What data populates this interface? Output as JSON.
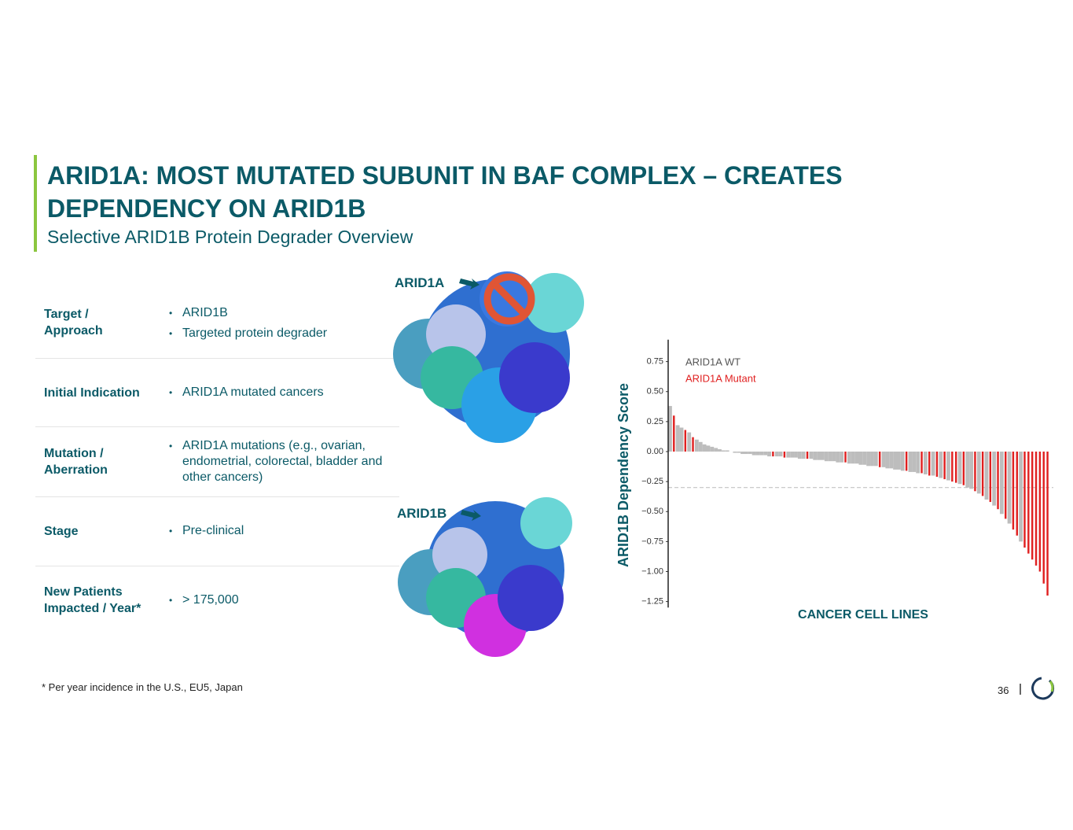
{
  "header": {
    "title": "ARID1A: MOST MUTATED SUBUNIT IN BAF COMPLEX – CREATES DEPENDENCY ON ARID1B",
    "subtitle": "Selective ARID1B Protein Degrader Overview"
  },
  "table": {
    "rows": [
      {
        "label": [
          "Target /",
          "Approach"
        ],
        "items": [
          "ARID1B",
          "Targeted protein degrader"
        ]
      },
      {
        "label": [
          "Initial Indication"
        ],
        "items": [
          "ARID1A mutated cancers"
        ]
      },
      {
        "label": [
          "Mutation /",
          "Aberration"
        ],
        "items": [
          "ARID1A mutations (e.g., ovarian, endometrial, colorectal, bladder and other cancers)"
        ]
      },
      {
        "label": [
          "Stage"
        ],
        "items": [
          "Pre-clinical"
        ]
      },
      {
        "label": [
          "New Patients",
          "Impacted / Year*"
        ],
        "items": [
          "> 175,000"
        ]
      }
    ]
  },
  "figure": {
    "labels": [
      "ARID1A",
      "ARID1B"
    ]
  },
  "chart_data": {
    "type": "bar",
    "y_label": "ARID1B Dependency Score",
    "x_label": "CANCER CELL LINES",
    "ylim": [
      -1.3,
      0.9
    ],
    "yticks": [
      {
        "value": 0.75,
        "label": "0.75"
      },
      {
        "value": 0.5,
        "label": "0.50"
      },
      {
        "value": 0.25,
        "label": "0.25"
      },
      {
        "value": 0,
        "label": "0.00"
      },
      {
        "value": -0.25,
        "label": "−0.25"
      },
      {
        "value": -0.5,
        "label": "−0.50"
      },
      {
        "value": -0.75,
        "label": "−0.75"
      },
      {
        "value": -1,
        "label": "−1.00"
      },
      {
        "value": -1.25,
        "label": "−1.25"
      }
    ],
    "reference_line": -0.3,
    "series": [
      {
        "name": "ARID1A WT",
        "color": "#bdbdbd",
        "values": [
          0.38,
          null,
          0.22,
          0.2,
          null,
          0.16,
          null,
          0.1,
          0.08,
          0.06,
          0.05,
          0.04,
          0.03,
          0.02,
          0.01,
          0.01,
          0,
          -0.01,
          -0.01,
          -0.02,
          -0.02,
          -0.02,
          -0.03,
          -0.03,
          -0.03,
          -0.03,
          -0.04,
          null,
          -0.04,
          -0.04,
          null,
          -0.05,
          -0.05,
          -0.05,
          -0.06,
          -0.06,
          null,
          -0.06,
          -0.07,
          -0.07,
          -0.07,
          -0.08,
          -0.08,
          -0.08,
          -0.09,
          -0.09,
          null,
          -0.1,
          -0.1,
          -0.1,
          -0.11,
          -0.11,
          -0.12,
          -0.12,
          -0.12,
          null,
          -0.13,
          -0.14,
          -0.14,
          -0.15,
          -0.15,
          -0.16,
          null,
          -0.17,
          -0.17,
          -0.18,
          null,
          -0.19,
          null,
          -0.2,
          null,
          -0.22,
          null,
          -0.24,
          null,
          null,
          -0.27,
          null,
          -0.3,
          -0.31,
          null,
          -0.35,
          null,
          -0.4,
          null,
          -0.45,
          null,
          -0.52,
          null,
          -0.6,
          null,
          null,
          -0.75,
          null,
          null,
          null,
          null,
          null,
          null,
          null
        ]
      },
      {
        "name": "ARID1A Mutant",
        "color": "#e02020",
        "values": [
          null,
          0.3,
          null,
          null,
          0.18,
          null,
          0.12,
          null,
          null,
          null,
          null,
          null,
          null,
          null,
          null,
          null,
          null,
          null,
          null,
          null,
          null,
          null,
          null,
          null,
          null,
          null,
          null,
          -0.04,
          null,
          null,
          -0.05,
          null,
          null,
          null,
          null,
          null,
          -0.06,
          null,
          null,
          null,
          null,
          null,
          null,
          null,
          null,
          null,
          -0.09,
          null,
          null,
          null,
          null,
          null,
          null,
          null,
          null,
          -0.13,
          null,
          null,
          null,
          null,
          null,
          null,
          -0.16,
          null,
          null,
          null,
          -0.18,
          null,
          -0.2,
          null,
          -0.21,
          null,
          -0.23,
          null,
          -0.25,
          -0.26,
          null,
          -0.28,
          null,
          null,
          -0.33,
          null,
          -0.37,
          null,
          -0.42,
          null,
          -0.48,
          null,
          -0.56,
          null,
          -0.65,
          -0.7,
          null,
          -0.8,
          -0.85,
          -0.9,
          -0.95,
          -1.0,
          -1.1,
          -1.2
        ]
      }
    ]
  },
  "footnote": "* Per year incidence in the U.S., EU5, Japan",
  "page_number": "36"
}
